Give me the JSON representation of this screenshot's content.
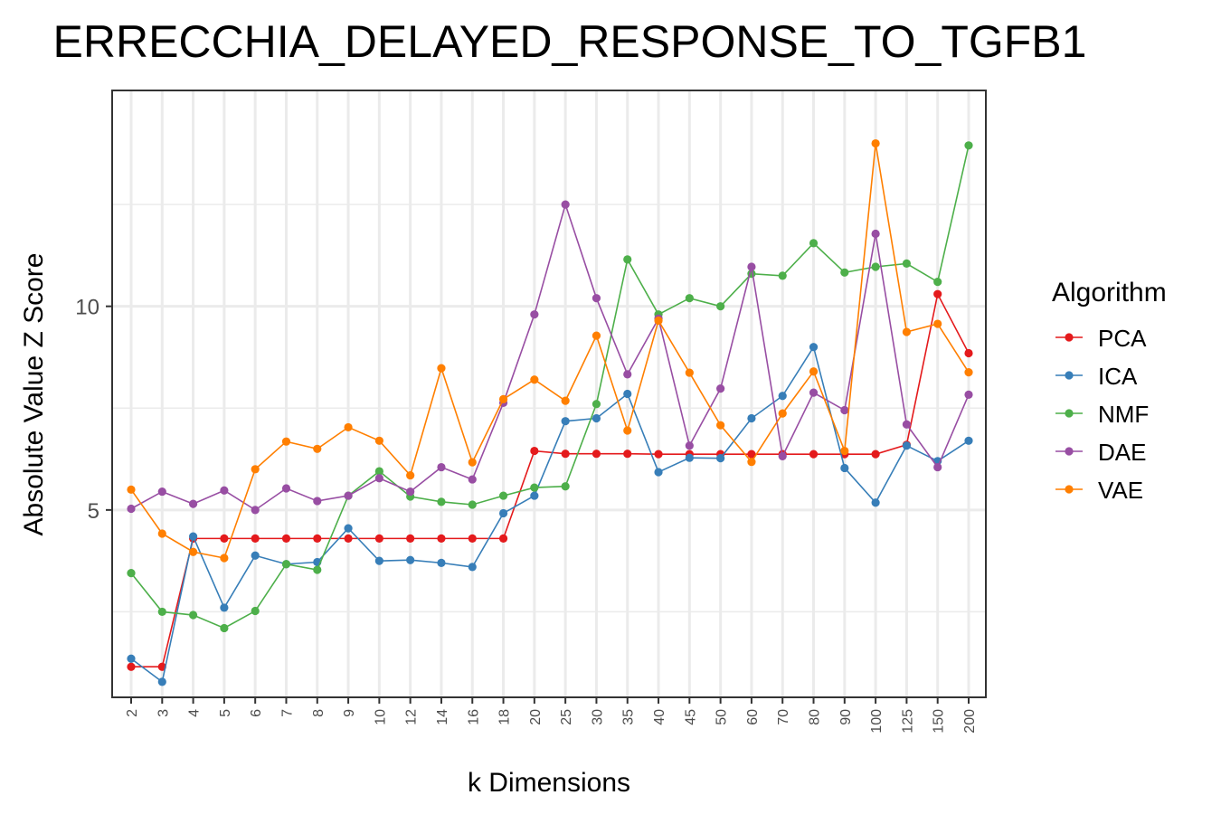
{
  "chart_data": {
    "type": "line",
    "title": "ERRECCHIA_DELAYED_RESPONSE_TO_TGFB1",
    "xlabel": "k Dimensions",
    "ylabel": "Absolute Value Z Score",
    "categories": [
      "2",
      "3",
      "4",
      "5",
      "6",
      "7",
      "8",
      "9",
      "10",
      "12",
      "14",
      "16",
      "18",
      "20",
      "25",
      "30",
      "35",
      "40",
      "45",
      "50",
      "60",
      "70",
      "80",
      "90",
      "100",
      "125",
      "150",
      "200"
    ],
    "yticks": [
      5,
      10
    ],
    "ylim": [
      0.4,
      15.3
    ],
    "grid": true,
    "legend": {
      "title": "Algorithm",
      "position": "right"
    },
    "series": [
      {
        "name": "PCA",
        "color": "#E41A1C",
        "values": [
          1.15,
          1.15,
          4.3,
          4.3,
          4.3,
          4.3,
          4.3,
          4.3,
          4.3,
          4.3,
          4.3,
          4.3,
          4.3,
          6.45,
          6.38,
          6.38,
          6.38,
          6.37,
          6.37,
          6.37,
          6.37,
          6.37,
          6.37,
          6.37,
          6.37,
          6.6,
          10.3,
          8.85
        ]
      },
      {
        "name": "ICA",
        "color": "#377EB8",
        "values": [
          1.35,
          0.78,
          4.35,
          2.6,
          3.88,
          3.67,
          3.72,
          4.55,
          3.75,
          3.77,
          3.7,
          3.6,
          4.92,
          5.35,
          7.18,
          7.25,
          7.85,
          5.93,
          6.28,
          6.27,
          7.25,
          7.8,
          9.0,
          6.03,
          5.18,
          6.58,
          6.2,
          6.7
        ]
      },
      {
        "name": "NMF",
        "color": "#4DAF4A",
        "values": [
          3.45,
          2.5,
          2.42,
          2.1,
          2.52,
          3.67,
          3.53,
          5.35,
          5.95,
          5.33,
          5.2,
          5.13,
          5.35,
          5.55,
          5.58,
          7.6,
          11.15,
          9.8,
          10.2,
          10.0,
          10.8,
          10.75,
          11.55,
          10.83,
          10.97,
          11.05,
          10.6,
          13.95
        ]
      },
      {
        "name": "DAE",
        "color": "#984EA3",
        "values": [
          5.03,
          5.45,
          5.15,
          5.48,
          5.0,
          5.53,
          5.22,
          5.35,
          5.78,
          5.45,
          6.05,
          5.75,
          7.63,
          9.8,
          12.5,
          10.2,
          8.33,
          9.7,
          6.58,
          7.98,
          10.97,
          6.32,
          7.88,
          7.45,
          11.78,
          7.1,
          6.05,
          7.83
        ]
      },
      {
        "name": "VAE",
        "color": "#FF7F00",
        "values": [
          5.5,
          4.42,
          3.97,
          3.82,
          6.0,
          6.68,
          6.5,
          7.03,
          6.7,
          5.85,
          8.48,
          6.17,
          7.72,
          8.2,
          7.68,
          9.28,
          6.95,
          9.65,
          8.37,
          7.08,
          6.18,
          7.37,
          8.4,
          6.45,
          14.0,
          9.37,
          9.57,
          8.38
        ]
      }
    ]
  }
}
